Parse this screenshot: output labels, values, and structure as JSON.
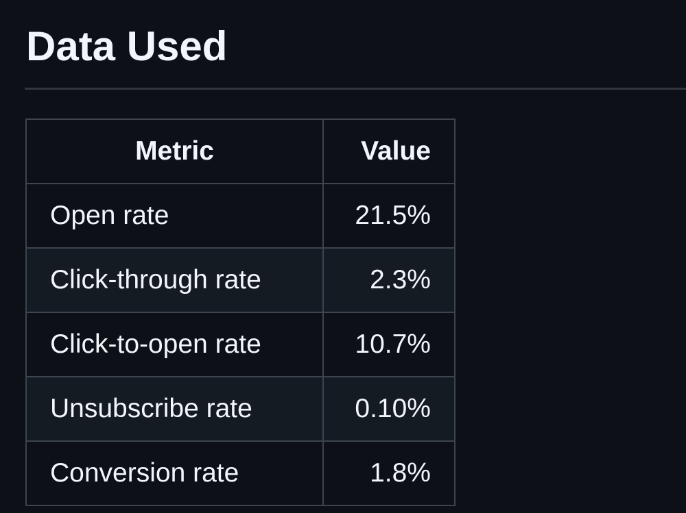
{
  "heading": "Data Used",
  "table": {
    "header": [
      "Metric",
      "Value"
    ],
    "rows": [
      [
        "Open rate",
        "21.5%"
      ],
      [
        "Click-through rate",
        "2.3%"
      ],
      [
        "Click-to-open rate",
        "10.7%"
      ],
      [
        "Unsubscribe rate",
        "0.10%"
      ],
      [
        "Conversion rate",
        "1.8%"
      ]
    ]
  }
}
